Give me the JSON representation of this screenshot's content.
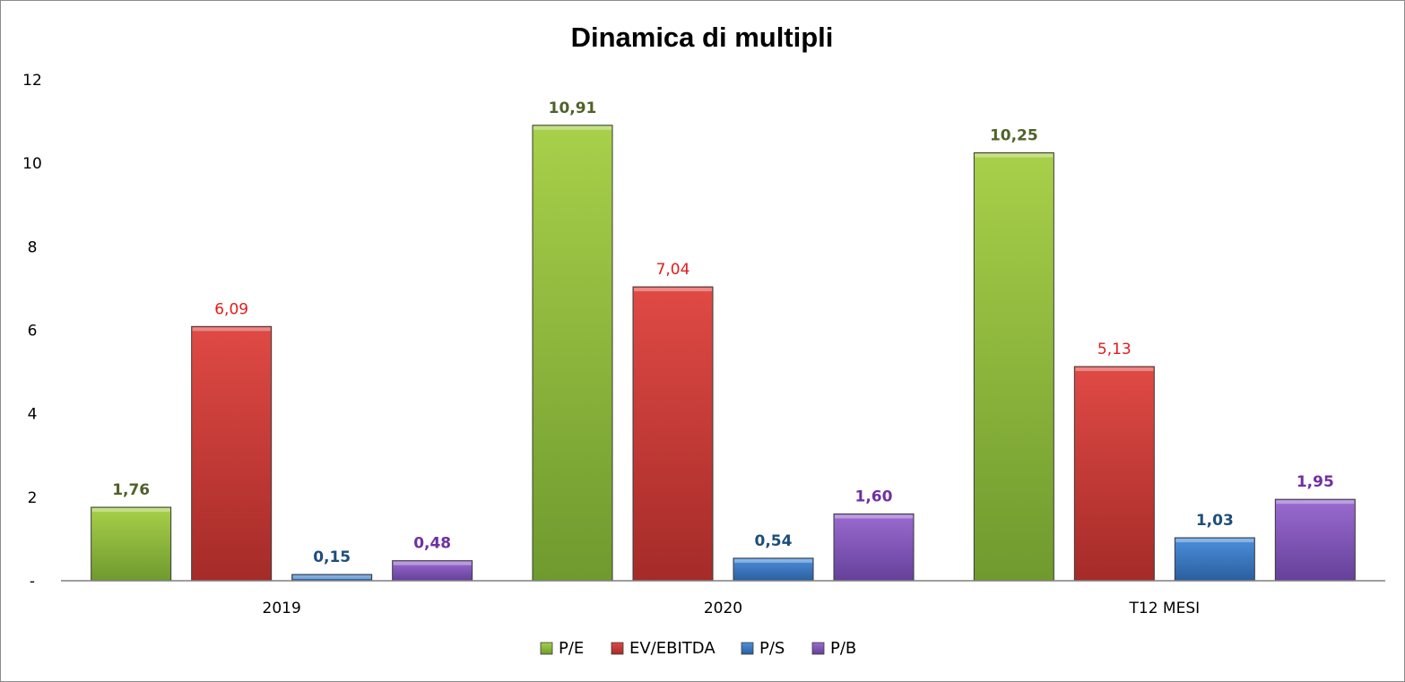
{
  "chart_data": {
    "type": "bar",
    "title": "Dinamica di multipli",
    "xlabel": "",
    "ylabel": "",
    "categories": [
      "2019",
      "2020",
      "T12 MESI"
    ],
    "ylim": [
      0,
      12
    ],
    "yticks": [
      {
        "value": 0,
        "label": "-"
      },
      {
        "value": 2,
        "label": "2"
      },
      {
        "value": 4,
        "label": "4"
      },
      {
        "value": 6,
        "label": "6"
      },
      {
        "value": 8,
        "label": "8"
      },
      {
        "value": 10,
        "label": "10"
      },
      {
        "value": 12,
        "label": "12"
      }
    ],
    "grid": false,
    "legend_position": "bottom",
    "series": [
      {
        "name": "P/E",
        "values": [
          1.76,
          10.91,
          10.25
        ],
        "labels": [
          "1,76",
          "10,91",
          "10,25"
        ],
        "color_top": "#a8d04a",
        "color_bottom": "#6f9a2e",
        "label_color": "#4f6228",
        "label_bold": true
      },
      {
        "name": "EV/EBITDA",
        "values": [
          6.09,
          7.04,
          5.13
        ],
        "labels": [
          "6,09",
          "7,04",
          "5,13"
        ],
        "color_top": "#e04a45",
        "color_bottom": "#a52b28",
        "label_color": "#e31b1b",
        "label_bold": false
      },
      {
        "name": "P/S",
        "values": [
          0.15,
          0.54,
          1.03
        ],
        "labels": [
          "0,15",
          "0,54",
          "1,03"
        ],
        "color_top": "#4d8fdc",
        "color_bottom": "#2a5f9e",
        "label_color": "#1f4e79",
        "label_bold": true
      },
      {
        "name": "P/B",
        "values": [
          0.48,
          1.6,
          1.95
        ],
        "labels": [
          "0,48",
          "1,60",
          "1,95"
        ],
        "color_top": "#9a6bd0",
        "color_bottom": "#65409a",
        "label_color": "#7030a0",
        "label_bold": true
      }
    ]
  }
}
